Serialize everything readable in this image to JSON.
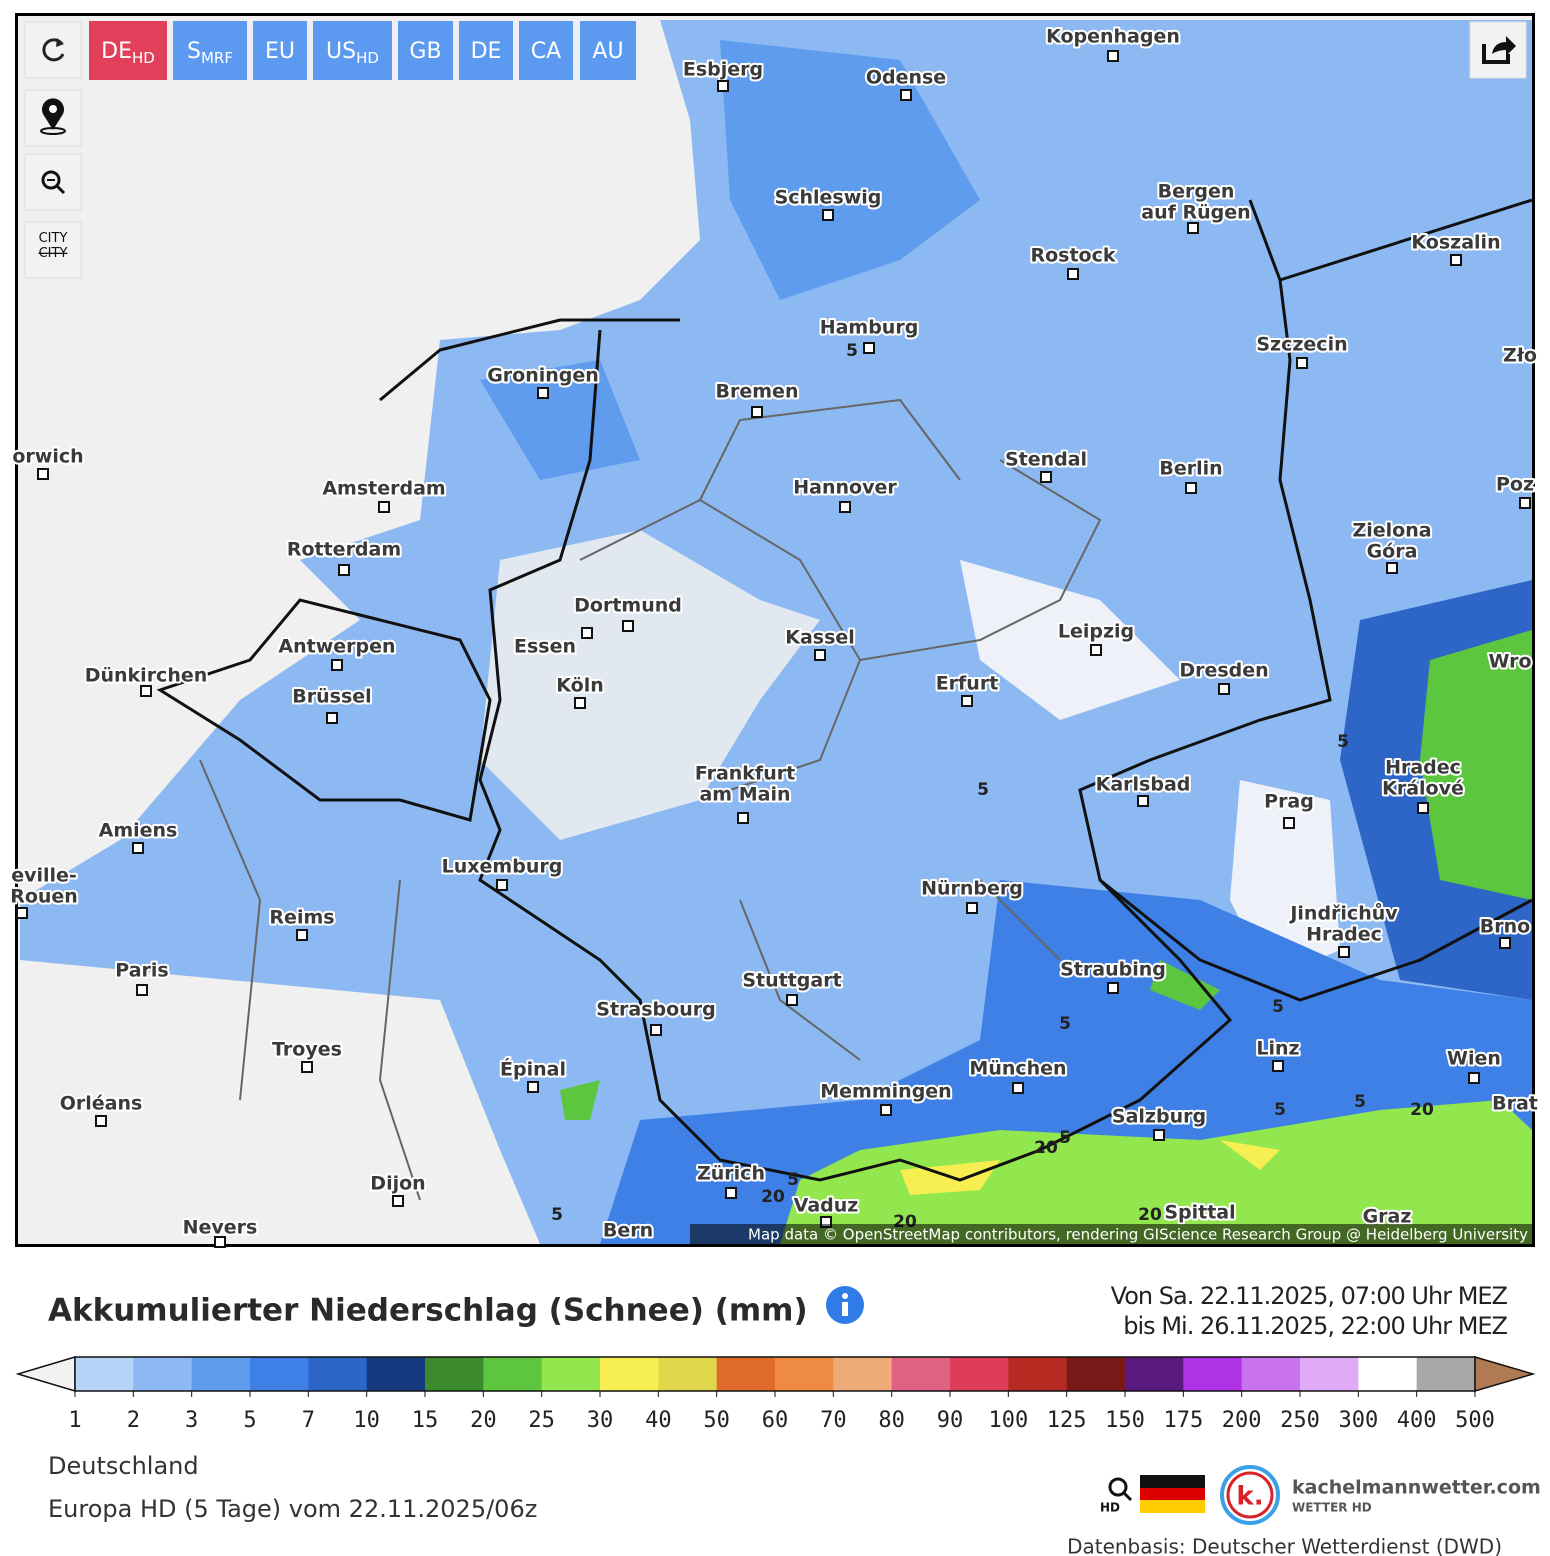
{
  "toolbar": {
    "models": [
      {
        "label": "DE",
        "sub": "HD"
      },
      {
        "label": "S",
        "sub": "MRF"
      },
      {
        "label": "EU"
      },
      {
        "label": "US",
        "sub": "HD"
      },
      {
        "label": "GB"
      },
      {
        "label": "DE"
      },
      {
        "label": "CA"
      },
      {
        "label": "AU"
      }
    ],
    "active_model": 0,
    "city_toggle": [
      "CITY",
      "CITY"
    ]
  },
  "map": {
    "cities": [
      [
        "Kopenhagen"
      ],
      [
        "Esbjerg"
      ],
      [
        "Odense"
      ],
      [
        "Schleswig"
      ],
      [
        "Bergen",
        "auf Rügen"
      ],
      [
        "Rostock"
      ],
      [
        "Koszalin"
      ],
      [
        "Hamburg"
      ],
      [
        "Szczecin"
      ],
      [
        "Zło"
      ],
      [
        "Groningen"
      ],
      [
        "Bremen"
      ],
      [
        "orwich"
      ],
      [
        "Amsterdam"
      ],
      [
        "Hannover"
      ],
      [
        "Stendal"
      ],
      [
        "Berlin"
      ],
      [
        "Poz"
      ],
      [
        "Rotterdam"
      ],
      [
        "Zielona",
        "Góra"
      ],
      [
        "Dortmund"
      ],
      [
        "Essen"
      ],
      [
        "Kassel"
      ],
      [
        "Leipzig"
      ],
      [
        "Antwerpen"
      ],
      [
        "Dünkirchen"
      ],
      [
        "Köln"
      ],
      [
        "Erfurt"
      ],
      [
        "Dresden"
      ],
      [
        "Wro"
      ],
      [
        "Brüssel"
      ],
      [
        "Frankfurt",
        "am Main"
      ],
      [
        "Karlsbad"
      ],
      [
        "Prag"
      ],
      [
        "Hradec",
        "Králové"
      ],
      [
        "Amiens"
      ],
      [
        "Luxemburg"
      ],
      [
        "Nürnberg"
      ],
      [
        "Jindřichův",
        "Hradec"
      ],
      [
        "Brno"
      ],
      [
        "Reims"
      ],
      [
        "Paris"
      ],
      [
        "eville-",
        "Rouen"
      ],
      [
        "Stuttgart"
      ],
      [
        "Straubing"
      ],
      [
        "Strasbourg"
      ],
      [
        "Troyes"
      ],
      [
        "Épinal"
      ],
      [
        "München"
      ],
      [
        "Linz"
      ],
      [
        "Wien"
      ],
      [
        "Memmingen"
      ],
      [
        "Orléans"
      ],
      [
        "Salzburg"
      ],
      [
        "Brat"
      ],
      [
        "Zürich"
      ],
      [
        "Dijon"
      ],
      [
        "Vaduz"
      ],
      [
        "Bern"
      ],
      [
        "Spittal"
      ],
      [
        "Graz"
      ],
      [
        "Nevers"
      ]
    ],
    "contour_labels": [
      5,
      5,
      5,
      5,
      5,
      5,
      5,
      5,
      5,
      5,
      20,
      20,
      20,
      20,
      20
    ],
    "attribution": "Map data © OpenStreetMap contributors, rendering GIScience Research Group @ Heidelberg University"
  },
  "legend": {
    "title": "Akkumulierter Niederschlag (Schnee) (mm)",
    "period": [
      "Von Sa. 22.11.2025, 07:00 Uhr MEZ",
      "bis Mi. 26.11.2025, 22:00 Uhr MEZ"
    ],
    "ticks": [
      1,
      2,
      3,
      5,
      7,
      10,
      15,
      20,
      25,
      30,
      40,
      50,
      60,
      70,
      80,
      90,
      100,
      125,
      150,
      175,
      200,
      250,
      300,
      400,
      500
    ],
    "colors": [
      "#b6d3f8",
      "#8db9f2",
      "#5f9cee",
      "#3f80e6",
      "#2d66c6",
      "#163a80",
      "#3b8a2e",
      "#5cc63e",
      "#92e64e",
      "#f7ef52",
      "#e0d74a",
      "#df6a2a",
      "#ef8a42",
      "#efaa7a",
      "#df6282",
      "#df3c5a",
      "#b62a22",
      "#7a1a18",
      "#5a1a80",
      "#b032e6",
      "#c872f0",
      "#e0aaf8",
      "#ffffff",
      "#a8a8a8"
    ],
    "below_color": "#f2f2f2",
    "above_color": "#b07a52"
  },
  "footer": {
    "region": "Deutschland",
    "run": "Europa HD (5 Tage) vom 22.11.2025/06z",
    "hd": "HD",
    "brand": "kachelmannwetter.com",
    "brand_sub": "WETTER HD",
    "logo_letter": "k.",
    "source": "Datenbasis: Deutscher Wetterdienst (DWD)"
  }
}
